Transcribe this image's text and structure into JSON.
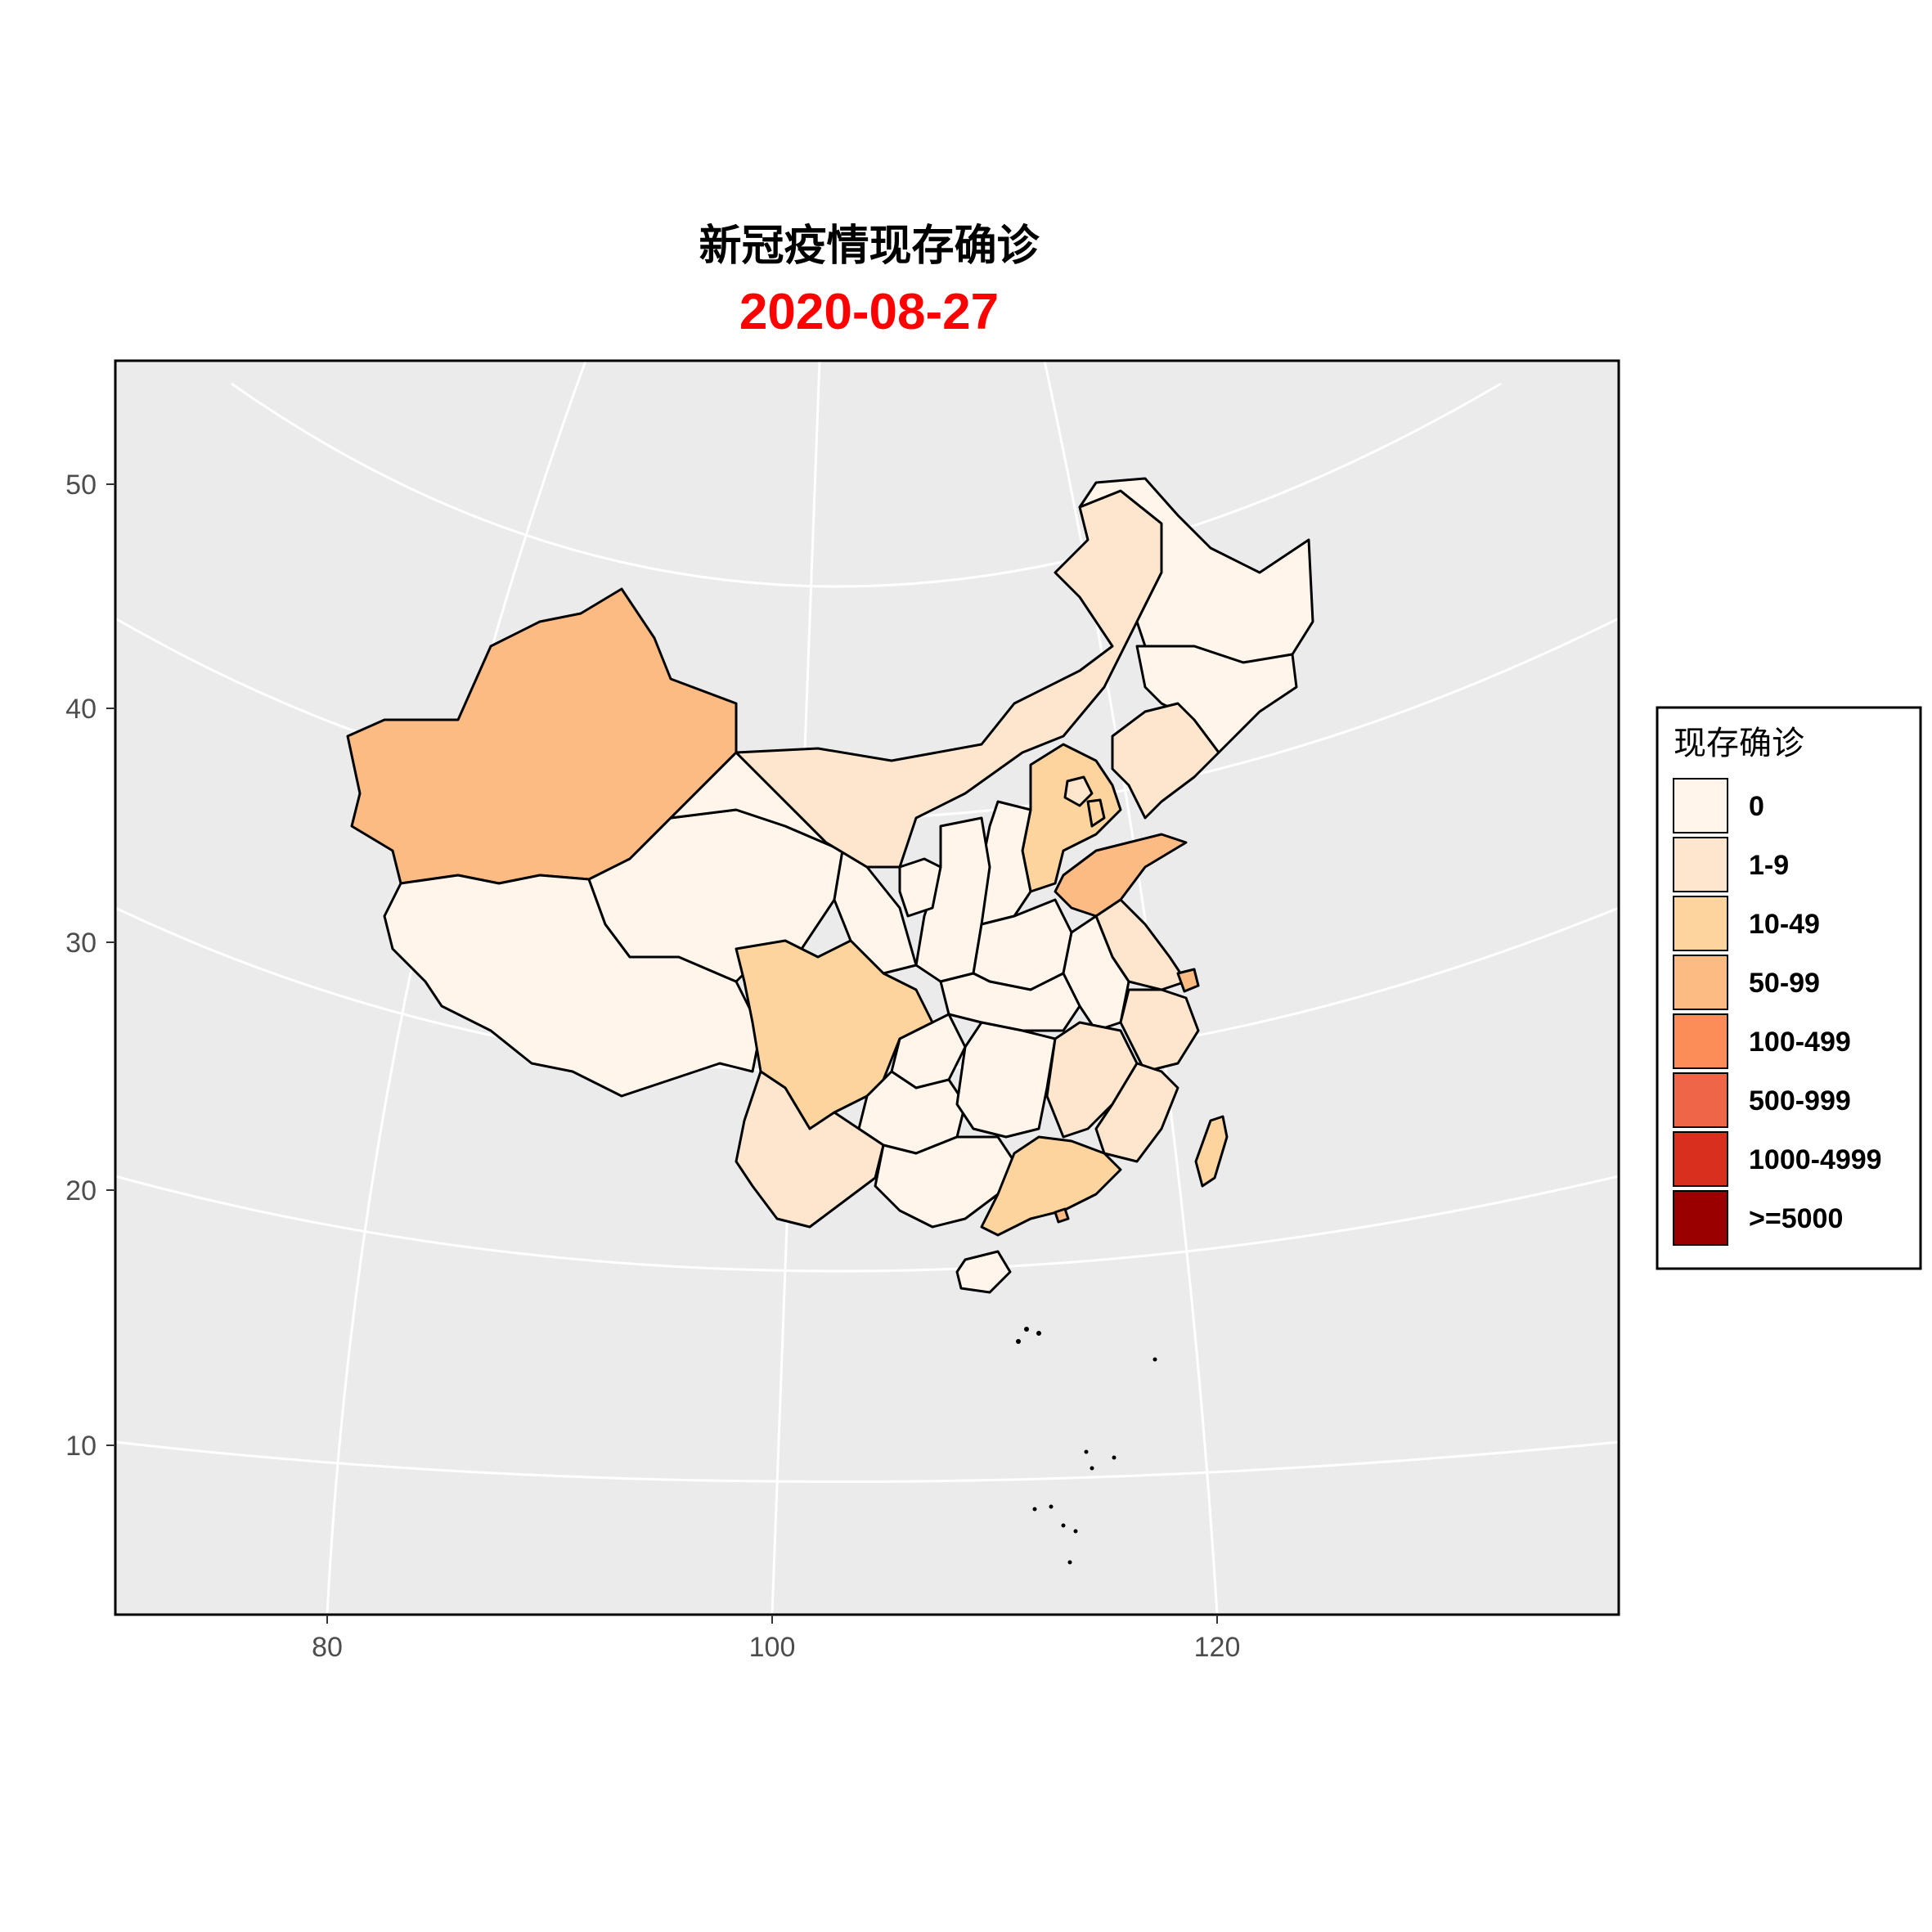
{
  "title": "新冠疫情现存确诊",
  "subtitle": "2020-08-27",
  "subtitle_color": "#ff0000",
  "panel_background": "#ebebeb",
  "grid_color": "#ffffff",
  "axes": {
    "x_ticks": [
      "80",
      "100",
      "120"
    ],
    "y_ticks": [
      "50",
      "40",
      "30",
      "20",
      "10"
    ]
  },
  "legend": {
    "title": "现存确诊",
    "position": "right",
    "entries": [
      {
        "label": "0",
        "color": "#fff5eb"
      },
      {
        "label": "1-9",
        "color": "#fee6ce"
      },
      {
        "label": "10-49",
        "color": "#fdd49e"
      },
      {
        "label": "50-99",
        "color": "#fdbb84"
      },
      {
        "label": "100-499",
        "color": "#fc8d59"
      },
      {
        "label": "500-999",
        "color": "#ef6548"
      },
      {
        "label": "1000-4999",
        "color": "#d7301f"
      },
      {
        "label": ">=5000",
        "color": "#990000"
      }
    ]
  },
  "chart_data": {
    "type": "choropleth",
    "value_bin": {
      "xinjiang": "50-99",
      "tibet": "0",
      "qinghai": "0",
      "gansu": "0",
      "inner_mongolia": "1-9",
      "heilongjiang": "0",
      "jilin": "0",
      "liaoning": "1-9",
      "hebei": "10-49",
      "beijing": "1-9",
      "tianjin": "10-49",
      "shanxi": "0",
      "shandong": "50-99",
      "shaanxi": "0",
      "ningxia": "0",
      "henan": "0",
      "jiangsu": "1-9",
      "anhui": "0",
      "shanghai": "50-99",
      "zhejiang": "1-9",
      "hubei": "0",
      "sichuan": "10-49",
      "chongqing": "0",
      "guizhou": "0",
      "yunnan": "1-9",
      "hunan": "0",
      "jiangxi": "1-9",
      "fujian": "1-9",
      "guangxi": "0",
      "guangdong": "10-49",
      "hainan": "0",
      "taiwan": "10-49",
      "hong_kong": "50-99"
    }
  }
}
